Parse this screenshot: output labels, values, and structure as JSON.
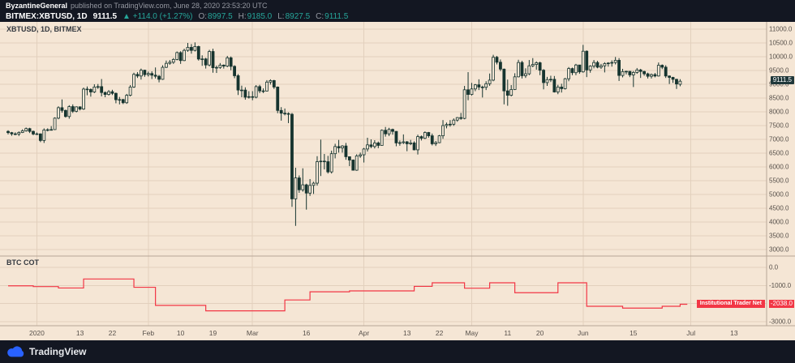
{
  "publish_bar": {
    "author": "ByzantineGeneral",
    "text": "published on TradingView.com, June 28, 2020 23:53:20 UTC"
  },
  "symbol_bar": {
    "symbol": "BITMEX:XBTUSD, 1D",
    "last": "9111.5",
    "change": "▲ +114.0 (+1.27%)",
    "open_label": "O:",
    "open": "8997.5",
    "high_label": "H:",
    "high": "9185.0",
    "low_label": "L:",
    "low": "8927.5",
    "close_label": "C:",
    "close": "9111.5"
  },
  "main_pane": {
    "legend": "XBTUSD, 1D, BITMEX",
    "price_tag": "9111.5"
  },
  "cot_pane": {
    "title": "BTC COT",
    "series_badge": "Institutional Trader Net",
    "value_tag": "-2038.0"
  },
  "footer": {
    "brand": "TradingView"
  },
  "colors": {
    "dark_bg": "#131722",
    "chart_bg": "#f5e6d5",
    "candle": "#16342f",
    "up_teal": "#26a69a",
    "red": "#f23645",
    "grid": "#e2d0bd",
    "separator": "#b6a696",
    "axis_text": "#57504a"
  },
  "chart_data": [
    {
      "type": "candlestick",
      "title": "XBTUSD, 1D, BITMEX",
      "symbol": "BITMEX:XBTUSD",
      "interval": "1D",
      "start_date": "2019-12-24",
      "last_close": 9111.5,
      "y_axis": {
        "min": 3000,
        "max": 11000,
        "tick": 500
      },
      "x_axis_labels": [
        {
          "day": 8,
          "label": "2020"
        },
        {
          "day": 20,
          "label": "13"
        },
        {
          "day": 29,
          "label": "22"
        },
        {
          "day": 39,
          "label": "Feb"
        },
        {
          "day": 48,
          "label": "10"
        },
        {
          "day": 57,
          "label": "19"
        },
        {
          "day": 68,
          "label": "Mar"
        },
        {
          "day": 83,
          "label": "16"
        },
        {
          "day": 99,
          "label": "Apr"
        },
        {
          "day": 111,
          "label": "13"
        },
        {
          "day": 120,
          "label": "22"
        },
        {
          "day": 129,
          "label": "May"
        },
        {
          "day": 139,
          "label": "11"
        },
        {
          "day": 148,
          "label": "20"
        },
        {
          "day": 160,
          "label": "Jun"
        },
        {
          "day": 174,
          "label": "15"
        },
        {
          "day": 190,
          "label": "Jul"
        },
        {
          "day": 202,
          "label": "13"
        }
      ],
      "month_grid_days": [
        8,
        39,
        68,
        99,
        129,
        160,
        190
      ],
      "ohlc": [
        [
          7290,
          7330,
          7180,
          7245
        ],
        [
          7245,
          7270,
          7130,
          7200
        ],
        [
          7200,
          7255,
          7150,
          7195
        ],
        [
          7195,
          7290,
          7120,
          7250
        ],
        [
          7250,
          7365,
          7230,
          7310
        ],
        [
          7310,
          7430,
          7280,
          7390
        ],
        [
          7390,
          7420,
          7230,
          7290
        ],
        [
          7290,
          7320,
          7150,
          7195
        ],
        [
          7195,
          7250,
          7160,
          7200
        ],
        [
          7200,
          7215,
          6900,
          6960
        ],
        [
          6960,
          7400,
          6870,
          7340
        ],
        [
          7340,
          7400,
          7290,
          7350
        ],
        [
          7350,
          7480,
          7320,
          7355
        ],
        [
          7355,
          7800,
          7340,
          7770
        ],
        [
          7770,
          8200,
          7730,
          8150
        ],
        [
          8150,
          8450,
          7970,
          8050
        ],
        [
          8050,
          8080,
          7790,
          7830
        ],
        [
          7830,
          8240,
          7750,
          8190
        ],
        [
          8190,
          8270,
          7960,
          8020
        ],
        [
          8020,
          8200,
          7980,
          8180
        ],
        [
          8180,
          8200,
          8050,
          8100
        ],
        [
          8100,
          8880,
          8070,
          8825
        ],
        [
          8825,
          8920,
          8600,
          8810
        ],
        [
          8810,
          8850,
          8550,
          8720
        ],
        [
          8720,
          9000,
          8680,
          8900
        ],
        [
          8900,
          9010,
          8830,
          8915
        ],
        [
          8915,
          9190,
          8560,
          8700
        ],
        [
          8700,
          8740,
          8530,
          8630
        ],
        [
          8630,
          8790,
          8590,
          8730
        ],
        [
          8730,
          8800,
          8610,
          8670
        ],
        [
          8670,
          8700,
          8310,
          8440
        ],
        [
          8440,
          8540,
          8270,
          8445
        ],
        [
          8445,
          8470,
          8280,
          8330
        ],
        [
          8330,
          8650,
          8290,
          8600
        ],
        [
          8600,
          8970,
          8560,
          8900
        ],
        [
          8900,
          9420,
          8870,
          9360
        ],
        [
          9360,
          9440,
          9230,
          9300
        ],
        [
          9300,
          9570,
          9170,
          9510
        ],
        [
          9510,
          9530,
          9270,
          9350
        ],
        [
          9350,
          9460,
          9280,
          9390
        ],
        [
          9390,
          9470,
          9190,
          9330
        ],
        [
          9330,
          9610,
          9210,
          9290
        ],
        [
          9290,
          9340,
          9070,
          9180
        ],
        [
          9180,
          9690,
          9160,
          9615
        ],
        [
          9615,
          9860,
          9590,
          9760
        ],
        [
          9760,
          9880,
          9710,
          9800
        ],
        [
          9800,
          9950,
          9740,
          9900
        ],
        [
          9900,
          10190,
          9870,
          10150
        ],
        [
          10150,
          10200,
          9740,
          9860
        ],
        [
          9860,
          10290,
          9840,
          10230
        ],
        [
          10230,
          10500,
          10180,
          10340
        ],
        [
          10340,
          10460,
          10110,
          10230
        ],
        [
          10230,
          10520,
          10190,
          10370
        ],
        [
          10370,
          10400,
          9860,
          9915
        ],
        [
          9915,
          10050,
          9670,
          9920
        ],
        [
          9920,
          9960,
          9570,
          9700
        ],
        [
          9700,
          10250,
          9650,
          10190
        ],
        [
          10190,
          10290,
          9420,
          9600
        ],
        [
          9600,
          9680,
          9410,
          9610
        ],
        [
          9610,
          9770,
          9560,
          9695
        ],
        [
          9695,
          9720,
          9570,
          9660
        ],
        [
          9660,
          10030,
          9620,
          9960
        ],
        [
          9960,
          10010,
          9510,
          9650
        ],
        [
          9650,
          9690,
          9220,
          9310
        ],
        [
          9310,
          9370,
          8610,
          8790
        ],
        [
          8790,
          8950,
          8530,
          8790
        ],
        [
          8790,
          8890,
          8440,
          8530
        ],
        [
          8530,
          8750,
          8480,
          8550
        ],
        [
          8550,
          8750,
          8420,
          8530
        ],
        [
          8530,
          8970,
          8490,
          8915
        ],
        [
          8915,
          8980,
          8680,
          8760
        ],
        [
          8760,
          8850,
          8680,
          8755
        ],
        [
          8755,
          9150,
          8740,
          9080
        ],
        [
          9080,
          9180,
          8990,
          9135
        ],
        [
          9135,
          9160,
          8830,
          8900
        ],
        [
          8900,
          8920,
          7950,
          8050
        ],
        [
          8050,
          8170,
          7680,
          7950
        ],
        [
          7950,
          8120,
          7870,
          7935
        ],
        [
          7935,
          7980,
          7590,
          7910
        ],
        [
          7910,
          7960,
          4550,
          4840
        ],
        [
          4840,
          5970,
          3860,
          5600
        ],
        [
          5600,
          5690,
          5060,
          5170
        ],
        [
          5170,
          5950,
          5100,
          5350
        ],
        [
          5350,
          5390,
          4450,
          5050
        ],
        [
          5050,
          5560,
          4950,
          5330
        ],
        [
          5330,
          5460,
          5020,
          5410
        ],
        [
          5410,
          6390,
          5320,
          6190
        ],
        [
          6190,
          6990,
          5670,
          6210
        ],
        [
          6210,
          6470,
          5910,
          6190
        ],
        [
          6190,
          6400,
          5760,
          5820
        ],
        [
          5820,
          6590,
          5760,
          6480
        ],
        [
          6480,
          6840,
          6310,
          6740
        ],
        [
          6740,
          6980,
          6520,
          6690
        ],
        [
          6690,
          6790,
          6520,
          6760
        ],
        [
          6760,
          6870,
          6260,
          6370
        ],
        [
          6370,
          6370,
          6030,
          6250
        ],
        [
          6250,
          6270,
          5870,
          5880
        ],
        [
          5880,
          6460,
          5860,
          6400
        ],
        [
          6400,
          6520,
          6330,
          6440
        ],
        [
          6440,
          6690,
          6160,
          6650
        ],
        [
          6650,
          7060,
          6560,
          6800
        ],
        [
          6800,
          7000,
          6680,
          6740
        ],
        [
          6740,
          6970,
          6670,
          6870
        ],
        [
          6870,
          6920,
          6680,
          6780
        ],
        [
          6780,
          7360,
          6770,
          7330
        ],
        [
          7330,
          7450,
          7100,
          7200
        ],
        [
          7200,
          7420,
          7120,
          7360
        ],
        [
          7360,
          7390,
          7170,
          7290
        ],
        [
          7290,
          7300,
          6750,
          6870
        ],
        [
          6870,
          6960,
          6770,
          6880
        ],
        [
          6880,
          7180,
          6830,
          6910
        ],
        [
          6910,
          6940,
          6570,
          6840
        ],
        [
          6840,
          6980,
          6790,
          6870
        ],
        [
          6870,
          6930,
          6600,
          6620
        ],
        [
          6620,
          7170,
          6450,
          7100
        ],
        [
          7100,
          7140,
          6960,
          7040
        ],
        [
          7040,
          7290,
          7010,
          7250
        ],
        [
          7250,
          7270,
          7060,
          7130
        ],
        [
          7130,
          7210,
          6780,
          6840
        ],
        [
          6840,
          6940,
          6760,
          6880
        ],
        [
          6880,
          7160,
          6860,
          7130
        ],
        [
          7130,
          7700,
          7020,
          7500
        ],
        [
          7500,
          7610,
          7400,
          7540
        ],
        [
          7540,
          7700,
          7460,
          7550
        ],
        [
          7550,
          7760,
          7490,
          7700
        ],
        [
          7700,
          7810,
          7640,
          7790
        ],
        [
          7790,
          7960,
          7710,
          7760
        ],
        [
          7760,
          8940,
          7730,
          8800
        ],
        [
          8800,
          9440,
          8420,
          8630
        ],
        [
          8630,
          9050,
          8590,
          8830
        ],
        [
          8830,
          9010,
          8750,
          8980
        ],
        [
          8980,
          9180,
          8790,
          8900
        ],
        [
          8900,
          8950,
          8520,
          8890
        ],
        [
          8890,
          9110,
          8790,
          9020
        ],
        [
          9020,
          9390,
          8940,
          9150
        ],
        [
          9150,
          10070,
          9110,
          9980
        ],
        [
          9980,
          10030,
          9720,
          9800
        ],
        [
          9800,
          9900,
          9480,
          9550
        ],
        [
          9550,
          9570,
          8270,
          8760
        ],
        [
          8760,
          9170,
          8220,
          8600
        ],
        [
          8600,
          8970,
          8560,
          8810
        ],
        [
          8810,
          9400,
          8790,
          9270
        ],
        [
          9270,
          9890,
          9250,
          9790
        ],
        [
          9790,
          9850,
          9210,
          9310
        ],
        [
          9310,
          9580,
          9230,
          9380
        ],
        [
          9380,
          9880,
          9330,
          9670
        ],
        [
          9670,
          9950,
          9620,
          9720
        ],
        [
          9720,
          9830,
          9530,
          9780
        ],
        [
          9780,
          9820,
          9330,
          9510
        ],
        [
          9510,
          9550,
          8815,
          9060
        ],
        [
          9060,
          9270,
          8940,
          9170
        ],
        [
          9170,
          9310,
          9080,
          9180
        ],
        [
          9180,
          9300,
          8700,
          8720
        ],
        [
          8720,
          8980,
          8640,
          8900
        ],
        [
          8900,
          9020,
          8700,
          8840
        ],
        [
          8840,
          9230,
          8810,
          9200
        ],
        [
          9200,
          9625,
          9110,
          9570
        ],
        [
          9570,
          9605,
          9330,
          9420
        ],
        [
          9420,
          9740,
          9330,
          9700
        ],
        [
          9700,
          9700,
          9380,
          9450
        ],
        [
          9450,
          10430,
          9420,
          10200
        ],
        [
          10200,
          10230,
          9260,
          9520
        ],
        [
          9520,
          9690,
          9420,
          9660
        ],
        [
          9660,
          9880,
          9580,
          9790
        ],
        [
          9790,
          9850,
          9580,
          9620
        ],
        [
          9620,
          9740,
          9560,
          9670
        ],
        [
          9670,
          9800,
          9430,
          9750
        ],
        [
          9750,
          9800,
          9640,
          9770
        ],
        [
          9770,
          9870,
          9640,
          9790
        ],
        [
          9790,
          9990,
          9720,
          9870
        ],
        [
          9870,
          9950,
          9120,
          9320
        ],
        [
          9320,
          9560,
          9250,
          9460
        ],
        [
          9460,
          9490,
          9360,
          9470
        ],
        [
          9470,
          9480,
          9260,
          9340
        ],
        [
          9340,
          9480,
          8900,
          9430
        ],
        [
          9430,
          9590,
          9380,
          9520
        ],
        [
          9520,
          9560,
          9230,
          9465
        ],
        [
          9465,
          9490,
          9310,
          9380
        ],
        [
          9380,
          9420,
          9210,
          9290
        ],
        [
          9290,
          9390,
          9210,
          9350
        ],
        [
          9350,
          9410,
          9250,
          9300
        ],
        [
          9300,
          9790,
          9280,
          9690
        ],
        [
          9690,
          9720,
          9550,
          9620
        ],
        [
          9620,
          9690,
          9230,
          9300
        ],
        [
          9300,
          9320,
          9010,
          9250
        ],
        [
          9250,
          9270,
          9050,
          9180
        ],
        [
          9180,
          9200,
          8830,
          9010
        ],
        [
          8997.5,
          9185,
          8927.5,
          9111.5
        ]
      ]
    },
    {
      "type": "line",
      "style": "step",
      "name": "Institutional Trader Net",
      "title": "BTC COT",
      "color": "#f23645",
      "y_axis": {
        "min": -3000,
        "max": 0,
        "tick": 1000
      },
      "points": [
        [
          0,
          -1020
        ],
        [
          7,
          -1060
        ],
        [
          14,
          -1140
        ],
        [
          21,
          -640
        ],
        [
          35,
          -1100
        ],
        [
          41,
          -2100
        ],
        [
          55,
          -2400
        ],
        [
          77,
          -1800
        ],
        [
          84,
          -1350
        ],
        [
          95,
          -1300
        ],
        [
          113,
          -1050
        ],
        [
          118,
          -850
        ],
        [
          127,
          -1150
        ],
        [
          134,
          -850
        ],
        [
          141,
          -1400
        ],
        [
          153,
          -850
        ],
        [
          161,
          -2150
        ],
        [
          171,
          -2250
        ],
        [
          182,
          -2150
        ],
        [
          187,
          -2038
        ]
      ],
      "last_value": -2038.0
    }
  ]
}
